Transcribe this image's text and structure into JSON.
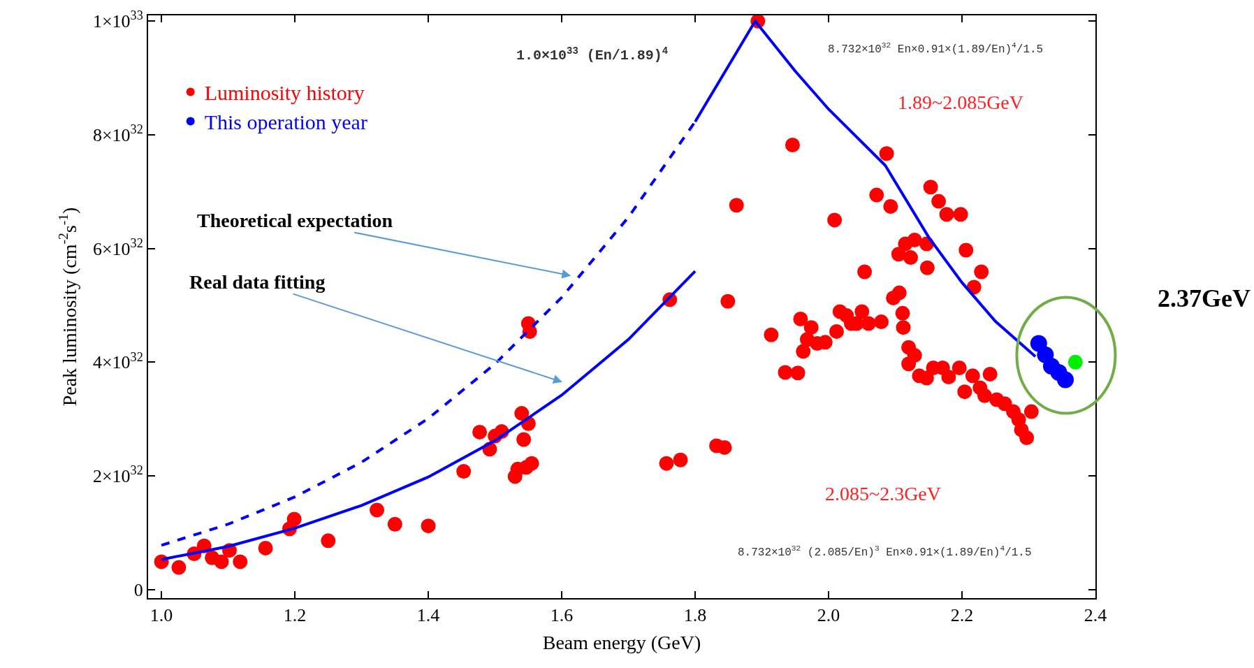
{
  "chart_data": {
    "type": "scatter",
    "xlabel": "Beam energy (GeV)",
    "ylabel": "Peak luminosity (cm$^{-2}$s$^{-1}$)",
    "xlim": [
      0.98,
      2.4
    ],
    "xticks": [
      {
        "value": 1.0,
        "label": "1.0"
      },
      1.2,
      1.4,
      1.6,
      1.8,
      {
        "value": 2.0,
        "label": "2.0"
      },
      2.2,
      2.4
    ],
    "ylim": [
      -1.5e+31,
      1.01e+33
    ],
    "yticks": [
      0,
      {
        "value": 2e+32,
        "label": "2×10$^{32}$"
      },
      {
        "value": 4e+32,
        "label": "4×10$^{32}$"
      },
      {
        "value": 6e+32,
        "label": "6×10$^{32}$"
      },
      {
        "value": 8e+32,
        "label": "8×10$^{32}$"
      },
      {
        "value": 1e+33,
        "label": "1×10$^{33}$"
      }
    ],
    "grid": false,
    "legend": "top left",
    "marker": "circle",
    "series": [
      {
        "name": "Luminosity history",
        "color": "#ff0000",
        "x": [
          1.0,
          1.026,
          1.049,
          1.064,
          1.076,
          1.09,
          1.102,
          1.118,
          1.156,
          1.192,
          1.199,
          1.25,
          1.323,
          1.35,
          1.4,
          1.453,
          1.477,
          1.492,
          1.5,
          1.51,
          1.53,
          1.534,
          1.54,
          1.543,
          1.547,
          1.55,
          1.555,
          1.55,
          1.552,
          1.757,
          1.778,
          1.762,
          1.832,
          1.844,
          1.849,
          1.862,
          1.894,
          1.914,
          1.935,
          1.946,
          1.954,
          1.958,
          1.962,
          1.968,
          1.974,
          1.983,
          1.995,
          2.009,
          2.012,
          2.017,
          2.027,
          2.034,
          2.042,
          2.05,
          2.054,
          2.06,
          2.072,
          2.079,
          2.087,
          2.093,
          2.097,
          2.106,
          2.111,
          2.112,
          2.105,
          2.115,
          2.123,
          2.129,
          2.12,
          2.12,
          2.129,
          2.136,
          2.147,
          2.148,
          2.147,
          2.153,
          2.165,
          2.177,
          2.157,
          2.171,
          2.18,
          2.196,
          2.198,
          2.206,
          2.204,
          2.216,
          2.218,
          2.229,
          2.227,
          2.234,
          2.242,
          2.252,
          2.264,
          2.277,
          2.285,
          2.289,
          2.297,
          2.304
        ],
        "values": [
          4.9e+31,
          3.9e+31,
          6.3e+31,
          7.7e+31,
          5.6e+31,
          4.9e+31,
          6.9e+31,
          4.9e+31,
          7.3e+31,
          1.07e+32,
          1.24e+32,
          8.6e+31,
          1.4e+32,
          1.15e+32,
          1.12e+32,
          2.08e+32,
          2.77e+32,
          2.47e+32,
          2.7e+32,
          2.78e+32,
          1.99e+32,
          2.12e+32,
          3.1e+32,
          2.64e+32,
          2.15e+32,
          2.92e+32,
          2.22e+32,
          4.68e+32,
          4.54e+32,
          2.22e+32,
          2.28e+32,
          5.1e+32,
          2.53e+32,
          2.5e+32,
          5.07e+32,
          6.76e+32,
          1e+33,
          4.48e+32,
          3.82e+32,
          7.82e+32,
          3.81e+32,
          4.76e+32,
          4.19e+32,
          4.4e+32,
          4.61e+32,
          4.33e+32,
          4.35e+32,
          6.5e+32,
          4.54e+32,
          4.89e+32,
          4.82e+32,
          4.68e+32,
          4.68e+32,
          4.89e+32,
          5.59e+32,
          4.68e+32,
          6.94e+32,
          4.71e+32,
          7.67e+32,
          6.74e+32,
          5.13e+32,
          5.22e+32,
          4.86e+32,
          4.61e+32,
          5.9e+32,
          6.08e+32,
          5.84e+32,
          6.15e+32,
          4.26e+32,
          3.97e+32,
          4.12e+32,
          3.76e+32,
          3.72e+32,
          5.66e+32,
          6.08e+32,
          7.08e+32,
          6.83e+32,
          6.6e+32,
          3.9e+32,
          3.9e+32,
          3.74e+32,
          3.9e+32,
          6.6e+32,
          5.97e+32,
          3.48e+32,
          3.76e+32,
          5.32e+32,
          5.59e+32,
          3.55e+32,
          3.41e+32,
          3.79e+32,
          3.34e+32,
          3.27e+32,
          3.13e+32,
          2.99e+32,
          2.81e+32,
          2.67e+32,
          3.13e+32
        ]
      },
      {
        "name": "This operation year",
        "color": "#0000ff",
        "x": [
          2.315,
          2.325,
          2.334,
          2.345,
          2.355
        ],
        "values": [
          4.33e+32,
          4.13e+32,
          3.93e+32,
          3.82e+32,
          3.69e+32
        ]
      },
      {
        "color": "#00ee00",
        "x": [
          2.37
        ],
        "values": [
          4e+32
        ]
      },
      {
        "type": "line",
        "line_style": "dashed",
        "marker": "none",
        "color": "#0000ff",
        "x": [
          1.0,
          1.1,
          1.2,
          1.3,
          1.4,
          1.5,
          1.6,
          1.7,
          1.8
        ],
        "values": [
          7.8e+31,
          1.15e+32,
          1.63e+32,
          2.24e+32,
          3.01e+32,
          3.97e+32,
          5.14e+32,
          6.55e+32,
          8.23e+32
        ]
      },
      {
        "type": "line",
        "line_style": "solid",
        "marker": "none",
        "color": "#0000ff",
        "x": [
          1.8,
          1.89,
          1.95,
          2.0,
          2.085,
          2.15,
          2.2,
          2.25,
          2.31
        ],
        "values": [
          8.23e+32,
          1e+33,
          9.12e+32,
          8.45e+32,
          7.46e+32,
          6.2e+32,
          5.4e+32,
          4.72e+32,
          4.1e+32
        ]
      },
      {
        "type": "line",
        "line_style": "solid",
        "marker": "none",
        "color": "#0000ff",
        "x": [
          1.0,
          1.1,
          1.2,
          1.3,
          1.4,
          1.5,
          1.6,
          1.7,
          1.8
        ],
        "values": [
          5.3e+31,
          7.6e+31,
          1.08e+32,
          1.48e+32,
          1.98e+32,
          2.62e+32,
          3.42e+32,
          4.4e+32,
          5.6e+32
        ]
      }
    ],
    "annotations": [
      "Theoretical expectation",
      "Real data fitting",
      "1.0×10$^{33}$ (En/1.89)$^{4}$",
      "8.732×10$^{32}$ En×0.91×(1.89/En)$^{4}$/1.5",
      "1.89~2.085GeV",
      "2.085~2.3GeV",
      "8.732×10$^{32}$ (2.085/En)$^{3}$ En×0.91×(1.89/En)$^{4}$/1.5",
      "2.37GeV"
    ]
  }
}
